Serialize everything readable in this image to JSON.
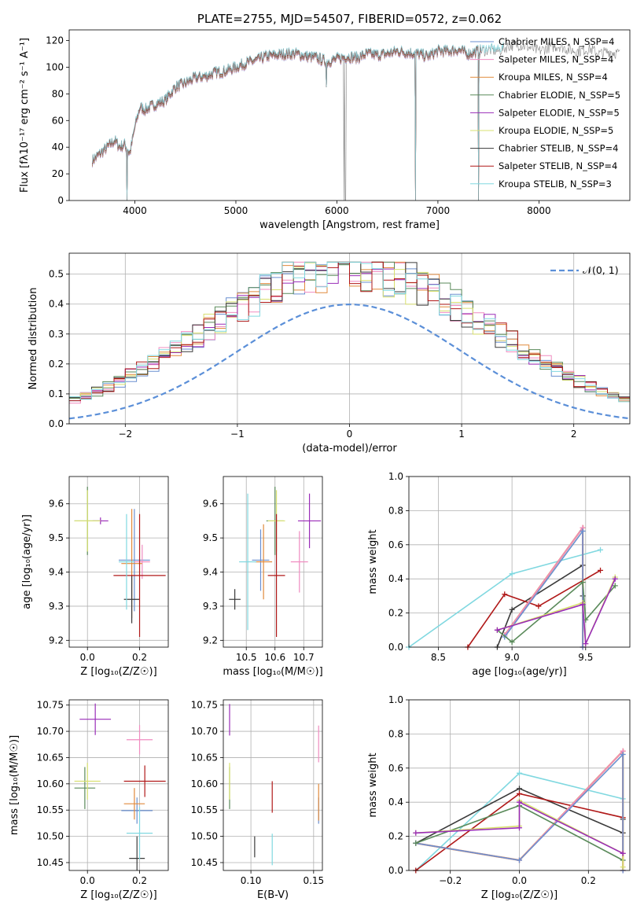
{
  "page_title": "PLATE=2755, MJD=54507, FIBERID=0572, z=0.062",
  "colors": {
    "chabrier_miles": "#6a8fd0",
    "salpeter_miles": "#f08cc0",
    "kroupa_miles": "#e08a3c",
    "chabrier_elodie": "#5a8a5a",
    "salpeter_elodie": "#9a2cb8",
    "kroupa_elodie": "#d8e070",
    "chabrier_stelib": "#3a3a3a",
    "salpeter_stelib": "#b01818",
    "kroupa_stelib": "#80d8e0",
    "gaussian": "#5b8fd8",
    "grid": "#b0b0b0",
    "data": "#888888"
  },
  "chart_data": [
    {
      "id": "spectrum",
      "type": "line",
      "title": "PLATE=2755, MJD=54507, FIBERID=0572, z=0.062",
      "xlabel": "wavelength [Angstrom, rest frame]",
      "ylabel": "Flux [f_λ10^{-17} erg cm^{-2} s^{-1} A^{-1}]",
      "xlim": [
        3350,
        8900
      ],
      "ylim": [
        0,
        128
      ],
      "xticks": [
        "4000",
        "5000",
        "6000",
        "7000",
        "8000"
      ],
      "yticks": [
        "0",
        "20",
        "40",
        "60",
        "80",
        "100",
        "120"
      ],
      "grid": false,
      "legend_position": "right",
      "series": [
        {
          "name": "Chabrier MILES, N_SSP=4",
          "key": "chabrier_miles"
        },
        {
          "name": "Salpeter MILES, N_SSP=4",
          "key": "salpeter_miles"
        },
        {
          "name": "Kroupa MILES, N_SSP=4",
          "key": "kroupa_miles"
        },
        {
          "name": "Chabrier ELODIE, N_SSP=5",
          "key": "chabrier_elodie"
        },
        {
          "name": "Salpeter ELODIE, N_SSP=5",
          "key": "salpeter_elodie"
        },
        {
          "name": "Kroupa ELODIE, N_SSP=5",
          "key": "kroupa_elodie"
        },
        {
          "name": "Chabrier STELIB, N_SSP=4",
          "key": "chabrier_stelib"
        },
        {
          "name": "Salpeter STELIB, N_SSP=4",
          "key": "salpeter_stelib"
        },
        {
          "name": "Kroupa STELIB, N_SSP=3",
          "key": "kroupa_stelib"
        }
      ],
      "continuum": [
        [
          3580,
          30
        ],
        [
          3700,
          38
        ],
        [
          3800,
          45
        ],
        [
          3850,
          40
        ],
        [
          3900,
          42
        ],
        [
          3950,
          35
        ],
        [
          4000,
          55
        ],
        [
          4050,
          70
        ],
        [
          4100,
          68
        ],
        [
          4200,
          72
        ],
        [
          4300,
          75
        ],
        [
          4400,
          85
        ],
        [
          4500,
          88
        ],
        [
          4600,
          92
        ],
        [
          4700,
          93
        ],
        [
          4800,
          96
        ],
        [
          4900,
          97
        ],
        [
          5000,
          100
        ],
        [
          5100,
          103
        ],
        [
          5200,
          105
        ],
        [
          5300,
          108
        ],
        [
          5400,
          109
        ],
        [
          5500,
          110
        ],
        [
          5600,
          110
        ],
        [
          5700,
          108
        ],
        [
          5800,
          107
        ],
        [
          5900,
          104
        ],
        [
          6000,
          106
        ],
        [
          6100,
          108
        ],
        [
          6200,
          107
        ],
        [
          6300,
          110
        ],
        [
          6400,
          109
        ],
        [
          6500,
          110
        ],
        [
          6600,
          112
        ],
        [
          6700,
          111
        ],
        [
          6800,
          110
        ],
        [
          6900,
          108
        ],
        [
          7000,
          112
        ],
        [
          7100,
          112
        ],
        [
          7200,
          113
        ],
        [
          7300,
          110
        ],
        [
          7400,
          112
        ],
        [
          7500,
          113
        ],
        [
          7600,
          112
        ],
        [
          7700,
          116
        ],
        [
          7800,
          117
        ],
        [
          7900,
          115
        ],
        [
          8000,
          112
        ],
        [
          8100,
          115
        ],
        [
          8200,
          116
        ],
        [
          8300,
          113
        ],
        [
          8400,
          112
        ],
        [
          8500,
          114
        ],
        [
          8600,
          110
        ],
        [
          8700,
          112
        ],
        [
          8800,
          110
        ]
      ],
      "drops": [
        [
          3923,
          0
        ],
        [
          5895,
          85
        ],
        [
          6070,
          0
        ],
        [
          6085,
          0
        ],
        [
          6780,
          0
        ],
        [
          7400,
          0
        ]
      ]
    },
    {
      "id": "residuals",
      "type": "histogram",
      "xlabel": "(data-model)/error",
      "ylabel": "Normed distribution",
      "xlim": [
        -2.5,
        2.5
      ],
      "ylim": [
        0,
        0.57
      ],
      "xticks": [
        "−2",
        "−1",
        "0",
        "1",
        "2"
      ],
      "yticks": [
        "0.0",
        "0.1",
        "0.2",
        "0.3",
        "0.4",
        "0.5"
      ],
      "grid": true,
      "legend": "𝒩(0, 1)",
      "legend_position": "top-right",
      "bin_width": 0.1
    },
    {
      "id": "age_vs_z",
      "type": "scatter",
      "xlabel": "Z [log₁₀(Z/Z☉)]",
      "ylabel": "age  [log₁₀(age/yr)]",
      "xlim": [
        -0.07,
        0.31
      ],
      "ylim": [
        9.18,
        9.68
      ],
      "xticks": [
        "0.0",
        "0.2"
      ],
      "yticks": [
        "9.2",
        "9.3",
        "9.4",
        "9.5",
        "9.6"
      ],
      "grid": true,
      "points": [
        {
          "key": "chabrier_miles",
          "x": 0.18,
          "xerr": 0.06,
          "y": 9.435,
          "yerr": 0.15
        },
        {
          "key": "salpeter_miles",
          "x": 0.21,
          "xerr": 0.03,
          "y": 9.43,
          "yerr": 0.05
        },
        {
          "key": "kroupa_miles",
          "x": 0.17,
          "xerr": 0.04,
          "y": 9.425,
          "yerr": 0.16
        },
        {
          "key": "chabrier_elodie",
          "x": 0.0,
          "xerr": 0.05,
          "y": 9.55,
          "yerr": 0.1
        },
        {
          "key": "salpeter_elodie",
          "x": 0.05,
          "xerr": 0.03,
          "y": 9.55,
          "yerr": 0.01
        },
        {
          "key": "kroupa_elodie",
          "x": 0.0,
          "xerr": 0.05,
          "y": 9.55,
          "yerr": 0.09
        },
        {
          "key": "chabrier_stelib",
          "x": 0.17,
          "xerr": 0.03,
          "y": 9.32,
          "yerr": 0.07
        },
        {
          "key": "salpeter_stelib",
          "x": 0.2,
          "xerr": 0.1,
          "y": 9.39,
          "yerr": 0.18
        },
        {
          "key": "kroupa_stelib",
          "x": 0.15,
          "xerr": 0.03,
          "y": 9.43,
          "yerr": 0.14
        }
      ]
    },
    {
      "id": "age_vs_mass",
      "type": "scatter",
      "xlabel": "mass [log₁₀(M/M☉)]",
      "ylabel": "",
      "xlim": [
        10.42,
        10.765
      ],
      "ylim": [
        9.18,
        9.68
      ],
      "xticks": [
        "10.5",
        "10.6",
        "10.7"
      ],
      "yticks": [
        "9.2",
        "9.3",
        "9.4",
        "9.5",
        "9.6"
      ],
      "grid": true,
      "points": [
        {
          "key": "chabrier_miles",
          "x": 10.55,
          "xerr": 0.03,
          "y": 9.435,
          "yerr": 0.09
        },
        {
          "key": "salpeter_miles",
          "x": 10.685,
          "xerr": 0.03,
          "y": 9.43,
          "yerr": 0.09
        },
        {
          "key": "kroupa_miles",
          "x": 10.56,
          "xerr": 0.03,
          "y": 9.43,
          "yerr": 0.11
        },
        {
          "key": "chabrier_elodie",
          "x": 10.6,
          "xerr": 0.03,
          "y": 9.55,
          "yerr": 0.1
        },
        {
          "key": "salpeter_elodie",
          "x": 10.72,
          "xerr": 0.04,
          "y": 9.55,
          "yerr": 0.08
        },
        {
          "key": "kroupa_elodie",
          "x": 10.605,
          "xerr": 0.03,
          "y": 9.55,
          "yerr": 0.09
        },
        {
          "key": "chabrier_stelib",
          "x": 10.46,
          "xerr": 0.02,
          "y": 9.32,
          "yerr": 0.03
        },
        {
          "key": "salpeter_stelib",
          "x": 10.605,
          "xerr": 0.03,
          "y": 9.39,
          "yerr": 0.18
        },
        {
          "key": "kroupa_stelib",
          "x": 10.505,
          "xerr": 0.03,
          "y": 9.43,
          "yerr": 0.2
        }
      ]
    },
    {
      "id": "weight_vs_age",
      "type": "line",
      "xlabel": "age  [log₁₀(age/yr)]",
      "ylabel": "mass weight",
      "xlim": [
        8.3,
        9.8
      ],
      "ylim": [
        0,
        1
      ],
      "xticks": [
        "8.5",
        "9.0",
        "9.5"
      ],
      "yticks": [
        "0.0",
        "0.2",
        "0.4",
        "0.6",
        "0.8",
        "1.0"
      ],
      "grid": true,
      "series": [
        {
          "key": "kroupa_stelib",
          "x": [
            8.3,
            9.0,
            9.6
          ],
          "y": [
            0.0,
            0.43,
            0.57
          ]
        },
        {
          "key": "chabrier_stelib",
          "x": [
            8.9,
            9.0,
            9.48,
            9.48
          ],
          "y": [
            0.0,
            0.22,
            0.48,
            0.3
          ]
        },
        {
          "key": "salpeter_stelib",
          "x": [
            8.7,
            8.95,
            9.18,
            9.6
          ],
          "y": [
            0.0,
            0.31,
            0.24,
            0.45
          ]
        },
        {
          "key": "kroupa_miles",
          "x": [
            8.95,
            9.48,
            9.48
          ],
          "y": [
            0.07,
            0.7,
            0.0
          ]
        },
        {
          "key": "salpeter_miles",
          "x": [
            8.95,
            9.48,
            9.48
          ],
          "y": [
            0.07,
            0.7,
            0.0
          ]
        },
        {
          "key": "chabrier_miles",
          "x": [
            8.95,
            9.48,
            9.48
          ],
          "y": [
            0.06,
            0.68,
            0.0
          ]
        },
        {
          "key": "chabrier_elodie",
          "x": [
            8.9,
            9.0,
            9.48,
            9.5,
            9.7
          ],
          "y": [
            0.1,
            0.03,
            0.38,
            0.16,
            0.36
          ]
        },
        {
          "key": "kroupa_elodie",
          "x": [
            8.9,
            9.48,
            9.5,
            9.7
          ],
          "y": [
            0.1,
            0.26,
            0.02,
            0.41
          ]
        },
        {
          "key": "salpeter_elodie",
          "x": [
            8.9,
            9.48,
            9.5,
            9.7
          ],
          "y": [
            0.1,
            0.25,
            0.02,
            0.4
          ]
        }
      ]
    },
    {
      "id": "mass_vs_z",
      "type": "scatter",
      "xlabel": "Z [log₁₀(Z/Z☉)]",
      "ylabel": "mass [log₁₀(M/M☉)]",
      "xlim": [
        -0.07,
        0.31
      ],
      "ylim": [
        10.435,
        10.76
      ],
      "xticks": [
        "0.0",
        "0.2"
      ],
      "yticks": [
        "10.45",
        "10.50",
        "10.55",
        "10.60",
        "10.65",
        "10.70",
        "10.75"
      ],
      "grid": true,
      "points": [
        {
          "key": "chabrier_miles",
          "x": 0.19,
          "xerr": 0.06,
          "y": 10.549,
          "yerr": 0.025
        },
        {
          "key": "salpeter_miles",
          "x": 0.2,
          "xerr": 0.05,
          "y": 10.684,
          "yerr": 0.028
        },
        {
          "key": "kroupa_miles",
          "x": 0.18,
          "xerr": 0.04,
          "y": 10.562,
          "yerr": 0.03
        },
        {
          "key": "chabrier_elodie",
          "x": -0.01,
          "xerr": 0.04,
          "y": 10.592,
          "yerr": 0.04
        },
        {
          "key": "salpeter_elodie",
          "x": 0.03,
          "xerr": 0.06,
          "y": 10.723,
          "yerr": 0.03
        },
        {
          "key": "kroupa_elodie",
          "x": 0.0,
          "xerr": 0.05,
          "y": 10.605,
          "yerr": 0.035
        },
        {
          "key": "chabrier_stelib",
          "x": 0.19,
          "xerr": 0.03,
          "y": 10.458,
          "yerr": 0.042
        },
        {
          "key": "salpeter_stelib",
          "x": 0.22,
          "xerr": 0.08,
          "y": 10.605,
          "yerr": 0.03
        },
        {
          "key": "kroupa_stelib",
          "x": 0.2,
          "xerr": 0.05,
          "y": 10.506,
          "yerr": 0.05
        }
      ]
    },
    {
      "id": "mass_vs_ebv",
      "type": "scatter",
      "xlabel": "E(B-V)",
      "ylabel": "",
      "xlim": [
        0.078,
        0.157
      ],
      "ylim": [
        10.435,
        10.76
      ],
      "xticks": [
        "0.05",
        "0.10",
        "0.15"
      ],
      "yticks": [
        "10.45",
        "10.50",
        "10.55",
        "10.60",
        "10.65",
        "10.70",
        "10.75"
      ],
      "grid": true,
      "points": [
        {
          "key": "chabrier_miles",
          "x": 0.154,
          "y": 10.549,
          "yerr": 0.025
        },
        {
          "key": "salpeter_miles",
          "x": 0.154,
          "y": 10.676,
          "yerr": 0.035
        },
        {
          "key": "kroupa_miles",
          "x": 0.154,
          "y": 10.565,
          "yerr": 0.035
        },
        {
          "key": "chabrier_elodie",
          "x": 0.083,
          "y": 10.592,
          "yerr": 0.04
        },
        {
          "key": "salpeter_elodie",
          "x": 0.083,
          "y": 10.722,
          "yerr": 0.03
        },
        {
          "key": "kroupa_elodie",
          "x": 0.083,
          "y": 10.605,
          "yerr": 0.035
        },
        {
          "key": "chabrier_stelib",
          "x": 0.103,
          "y": 10.48,
          "yerr": 0.02
        },
        {
          "key": "salpeter_stelib",
          "x": 0.117,
          "y": 10.575,
          "yerr": 0.03
        },
        {
          "key": "kroupa_stelib",
          "x": 0.117,
          "y": 10.475,
          "yerr": 0.03
        }
      ]
    },
    {
      "id": "weight_vs_z",
      "type": "line",
      "xlabel": "Z [log₁₀(Z/Z☉)]",
      "ylabel": "mass weight",
      "xlim": [
        -0.32,
        0.32
      ],
      "ylim": [
        0,
        1
      ],
      "xticks": [
        "−0.2",
        "0.0",
        "0.2"
      ],
      "yticks": [
        "0.0",
        "0.2",
        "0.4",
        "0.6",
        "0.8",
        "1.0"
      ],
      "grid": true,
      "series": [
        {
          "key": "kroupa_stelib",
          "x": [
            -0.3,
            0.0,
            0.3
          ],
          "y": [
            0.0,
            0.57,
            0.42
          ]
        },
        {
          "key": "chabrier_stelib",
          "x": [
            -0.3,
            0.0,
            0.3,
            0.3
          ],
          "y": [
            0.16,
            0.48,
            0.22,
            0.3
          ]
        },
        {
          "key": "salpeter_stelib",
          "x": [
            -0.3,
            0.0,
            0.3
          ],
          "y": [
            0.0,
            0.45,
            0.31
          ]
        },
        {
          "key": "kroupa_miles",
          "x": [
            -0.3,
            0.0,
            0.3,
            0.3
          ],
          "y": [
            0.16,
            0.06,
            0.7,
            0.0
          ]
        },
        {
          "key": "salpeter_miles",
          "x": [
            -0.3,
            0.0,
            0.3,
            0.3
          ],
          "y": [
            0.16,
            0.06,
            0.7,
            0.0
          ]
        },
        {
          "key": "chabrier_miles",
          "x": [
            -0.3,
            0.0,
            0.3,
            0.3
          ],
          "y": [
            0.16,
            0.06,
            0.68,
            0.0
          ]
        },
        {
          "key": "chabrier_elodie",
          "x": [
            -0.3,
            0.0,
            0.3
          ],
          "y": [
            0.16,
            0.38,
            0.06
          ]
        },
        {
          "key": "kroupa_elodie",
          "x": [
            -0.3,
            0.0,
            0.0,
            0.3,
            0.3
          ],
          "y": [
            0.22,
            0.26,
            0.41,
            0.1,
            0.02
          ]
        },
        {
          "key": "salpeter_elodie",
          "x": [
            -0.3,
            0.0,
            0.0,
            0.3
          ],
          "y": [
            0.22,
            0.25,
            0.4,
            0.1
          ]
        }
      ]
    }
  ]
}
